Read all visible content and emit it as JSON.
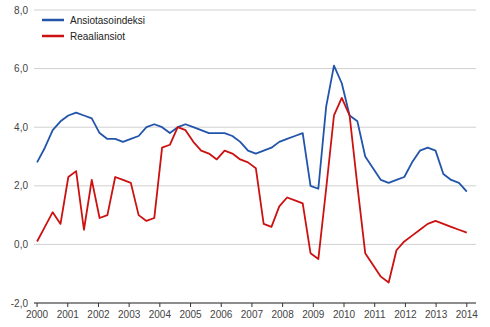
{
  "chart_data": {
    "type": "line",
    "x": [
      2000,
      2000.2545,
      2000.5091,
      2000.7636,
      2001.0182,
      2001.2727,
      2001.5273,
      2001.7818,
      2002.0364,
      2002.2909,
      2002.5455,
      2002.8,
      2003.0545,
      2003.3091,
      2003.5636,
      2003.8182,
      2004.0727,
      2004.3273,
      2004.5818,
      2004.8364,
      2005.0909,
      2005.3455,
      2005.6,
      2005.8545,
      2006.1091,
      2006.3636,
      2006.6182,
      2006.8727,
      2007.1273,
      2007.3818,
      2007.6364,
      2007.8909,
      2008.1455,
      2008.4,
      2008.6545,
      2008.9091,
      2009.1636,
      2009.4182,
      2009.6727,
      2009.9273,
      2010.1818,
      2010.4364,
      2010.6909,
      2010.9455,
      2011.2,
      2011.4545,
      2011.7091,
      2011.9636,
      2012.2182,
      2012.4727,
      2012.7273,
      2012.9818,
      2013.2364,
      2013.4909,
      2013.7455,
      2014
    ],
    "series": [
      {
        "name": "Ansiotasoindeksi",
        "color": "#2255aa",
        "values": [
          2.8,
          3.3,
          3.9,
          4.2,
          4.4,
          4.5,
          4.4,
          4.3,
          3.8,
          3.6,
          3.6,
          3.5,
          3.6,
          3.7,
          4.0,
          4.1,
          4.0,
          3.8,
          4.0,
          4.1,
          4.0,
          3.9,
          3.8,
          3.8,
          3.8,
          3.7,
          3.5,
          3.2,
          3.1,
          3.2,
          3.3,
          3.5,
          3.6,
          3.7,
          3.8,
          2.0,
          1.9,
          4.7,
          6.1,
          5.5,
          4.4,
          4.2,
          3.0,
          2.6,
          2.2,
          2.1,
          2.2,
          2.3,
          2.8,
          3.2,
          3.3,
          3.2,
          2.4,
          2.2,
          2.1,
          1.8
        ]
      },
      {
        "name": "Reaaliansiot",
        "color": "#cc1111",
        "values": [
          0.1,
          0.6,
          1.1,
          0.7,
          2.3,
          2.5,
          0.5,
          2.2,
          0.9,
          1.0,
          2.3,
          2.2,
          2.1,
          1.0,
          0.8,
          0.9,
          3.3,
          3.4,
          4.0,
          3.9,
          3.5,
          3.2,
          3.1,
          2.9,
          3.2,
          3.1,
          2.9,
          2.8,
          2.6,
          0.7,
          0.6,
          1.3,
          1.6,
          1.5,
          1.4,
          -0.3,
          -0.5,
          1.9,
          4.4,
          5.0,
          4.4,
          2.0,
          -0.3,
          -0.7,
          -1.1,
          -1.3,
          -0.2,
          0.1,
          0.3,
          0.5,
          0.7,
          0.8,
          0.7,
          0.6,
          0.5,
          0.4
        ]
      }
    ],
    "xlim": [
      1999.9,
      2014.3
    ],
    "xticks": [
      2000,
      2001,
      2002,
      2003,
      2004,
      2005,
      2006,
      2007,
      2008,
      2009,
      2010,
      2011,
      2012,
      2013,
      2014
    ],
    "ylim": [
      -2.0,
      8.0
    ],
    "yticks": [
      {
        "value": -2.0,
        "label": "-2,0"
      },
      {
        "value": 0.0,
        "label": "0,0"
      },
      {
        "value": 2.0,
        "label": "2,0"
      },
      {
        "value": 4.0,
        "label": "4,0"
      },
      {
        "value": 6.0,
        "label": "6,0"
      },
      {
        "value": 8.0,
        "label": "8,0"
      }
    ],
    "grid": true,
    "legend": "upper left"
  }
}
